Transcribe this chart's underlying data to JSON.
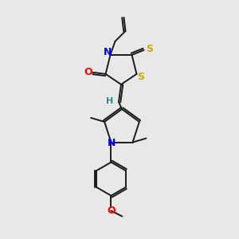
{
  "background_color": "#e8e8e8",
  "bond_color": "#1a1a1a",
  "atom_colors": {
    "N": "#0000ff",
    "O": "#ff0000",
    "S": "#ccaa00",
    "H": "#2e8b8b"
  },
  "figsize": [
    3.0,
    3.0
  ],
  "dpi": 100
}
